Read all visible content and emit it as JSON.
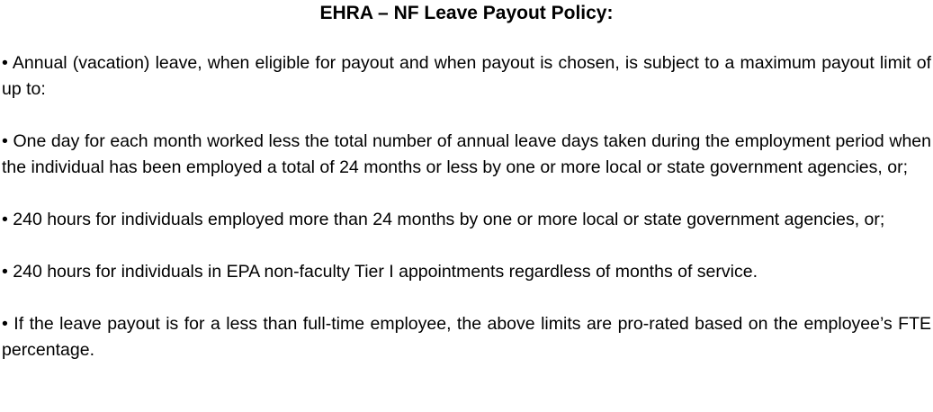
{
  "document": {
    "title": "EHRA – NF Leave Payout Policy:",
    "bullet": "•",
    "paragraphs": [
      "Annual (vacation) leave, when eligible for payout and when payout is chosen, is subject to a maximum payout limit of up to:",
      "One day for each month worked less the total number of annual leave days taken during the employment period when the individual has been employed a total of 24 months or less by one or more local or state government agencies, or;",
      "240 hours for individuals employed more than 24 months by one or more local or state government agencies, or;",
      "240 hours for individuals in EPA non-faculty Tier I appointments regardless of months of service.",
      "If the leave payout is for a less than full-time employee, the above limits are pro-rated based on the employee’s FTE percentage."
    ]
  }
}
